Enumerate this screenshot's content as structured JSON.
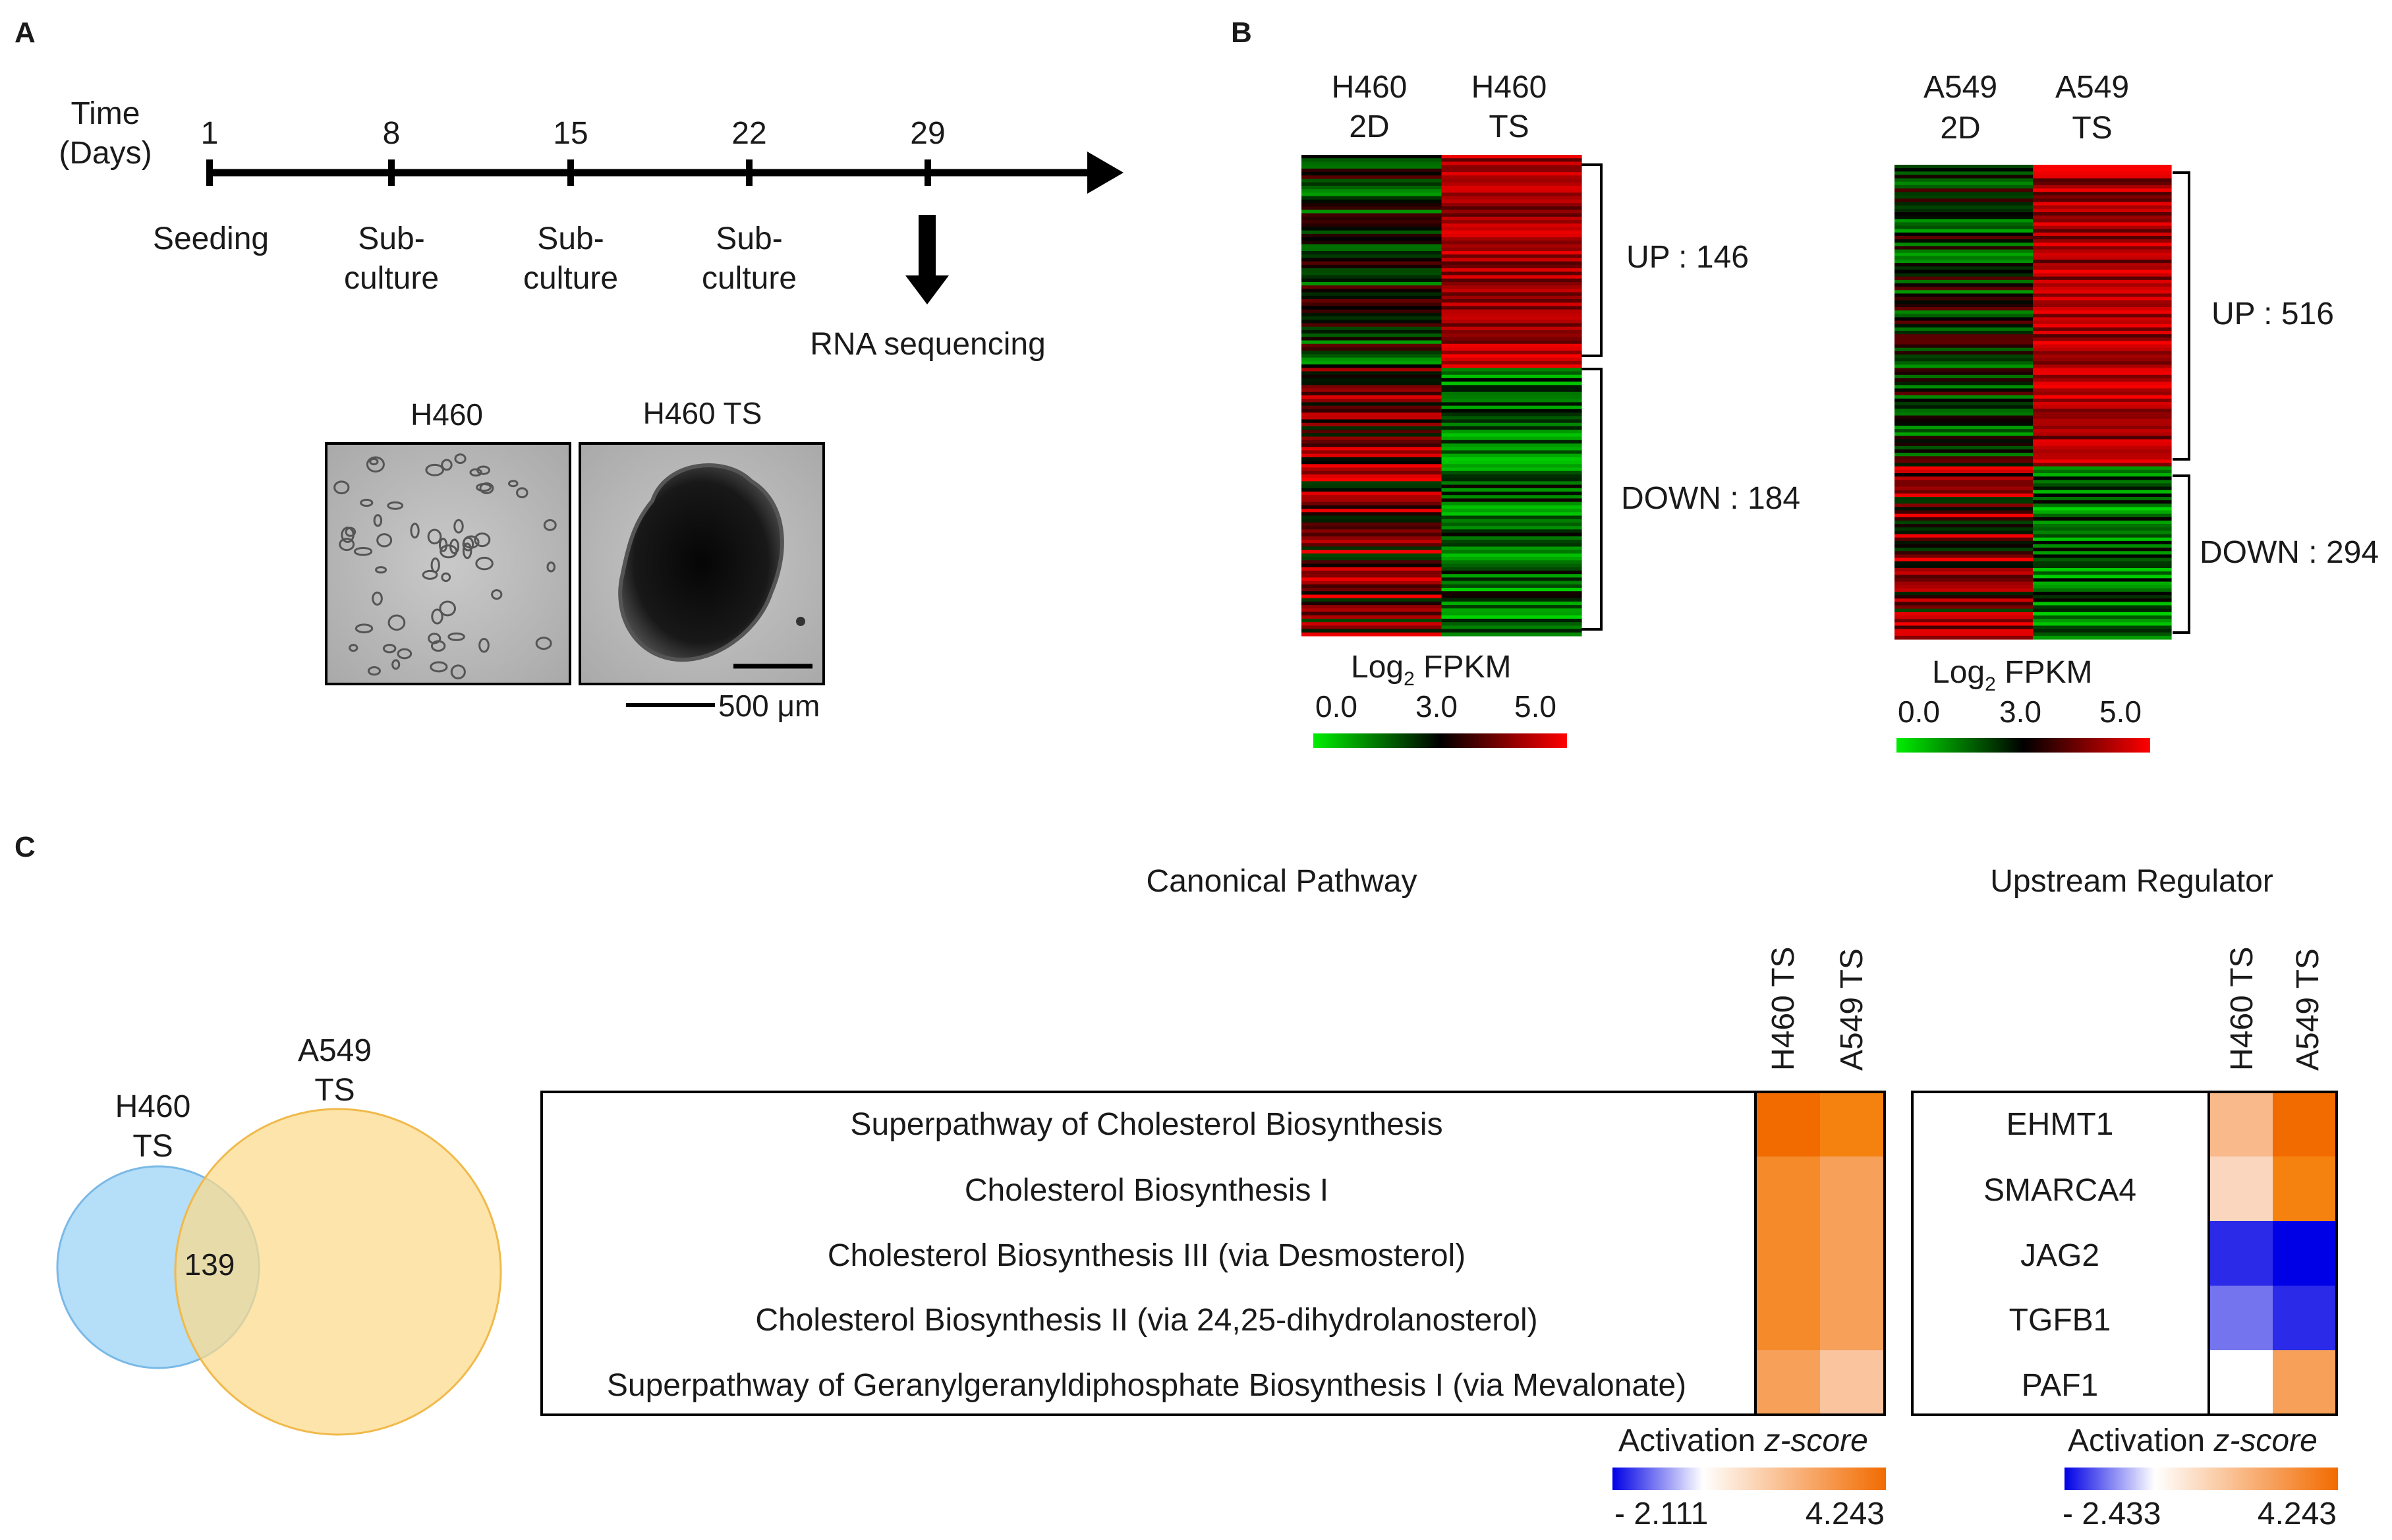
{
  "panel_a": {
    "letter": "A",
    "time_label_1": "Time",
    "time_label_2": "(Days)",
    "days": [
      "1",
      "8",
      "15",
      "22",
      "29"
    ],
    "events": [
      {
        "line1": "Seeding",
        "line2": ""
      },
      {
        "line1": "Sub-",
        "line2": "culture"
      },
      {
        "line1": "Sub-",
        "line2": "culture"
      },
      {
        "line1": "Sub-",
        "line2": "culture"
      }
    ],
    "rna_label": "RNA sequencing",
    "image_left_label": "H460",
    "image_right_label": "H460 TS",
    "scale_label": "500 μm"
  },
  "panel_b": {
    "letter": "B",
    "heatmaps": [
      {
        "col1": [
          "H460",
          "2D"
        ],
        "col2": [
          "H460",
          "TS"
        ],
        "up_label": "UP : 146",
        "down_label": "DOWN : 184",
        "up_count": 146,
        "down_count": 184
      },
      {
        "col1": [
          "A549",
          "2D"
        ],
        "col2": [
          "A549",
          "TS"
        ],
        "up_label": "UP : 516",
        "down_label": "DOWN : 294",
        "up_count": 516,
        "down_count": 294
      }
    ],
    "legend": {
      "title": "Log",
      "subscript": "2",
      "title_suffix": " FPKM",
      "ticks": [
        "0.0",
        "3.0",
        "5.0"
      ],
      "colors": [
        "#00ee00",
        "#000000",
        "#ff0000"
      ]
    }
  },
  "panel_c": {
    "letter": "C",
    "venn": {
      "set_a": [
        "H460",
        "TS"
      ],
      "set_b": [
        "A549",
        "TS"
      ],
      "overlap": "139",
      "color_a": "#a8d8f8",
      "color_b": "#fcd98a"
    },
    "canonical": {
      "title": "Canonical Pathway",
      "columns": [
        "H460 TS",
        "A549 TS"
      ],
      "rows": [
        {
          "label": "Superpathway  of  Cholesterol  Biosynthesis",
          "color1": "#f26b00",
          "color2": "#f5820f"
        },
        {
          "label": "Cholesterol  Biosynthesis  I",
          "color1": "#f58a2a",
          "color2": "#f6a05a"
        },
        {
          "label": "Cholesterol  Biosynthesis  III  (via  Desmosterol)",
          "color1": "#f58a2a",
          "color2": "#f6a05a"
        },
        {
          "label": "Cholesterol  Biosynthesis  II  (via  24,25-dihydrolanosterol)",
          "color1": "#f58a2a",
          "color2": "#f6a05a"
        },
        {
          "label": "Superpathway  of  Geranylgeranyldiphosphate   Biosynthesis  I  (via   Mevalonate)",
          "color1": "#f6a05a",
          "color2": "#f9c49e"
        }
      ],
      "zscore": {
        "label": "Activation ",
        "italic": "z-score",
        "min": "- 2.111",
        "max": "4.243"
      }
    },
    "upstream": {
      "title": "Upstream Regulator",
      "columns": [
        "H460 TS",
        "A549 TS"
      ],
      "rows": [
        {
          "label": "EHMT1",
          "color1": "#f9b98a",
          "color2": "#f26b00"
        },
        {
          "label": "SMARCA4",
          "color1": "#fbd6bf",
          "color2": "#f5820f"
        },
        {
          "label": "JAG2",
          "color1": "#2a2ae8",
          "color2": "#0000e6"
        },
        {
          "label": "TGFB1",
          "color1": "#7474ee",
          "color2": "#2a2ae8"
        },
        {
          "label": "PAF1",
          "color1": "#ffffff",
          "color2": "#f6a05a"
        }
      ],
      "zscore": {
        "label": "Activation ",
        "italic": "z-score",
        "min": "-  2.433",
        "max": "4.243"
      }
    }
  }
}
